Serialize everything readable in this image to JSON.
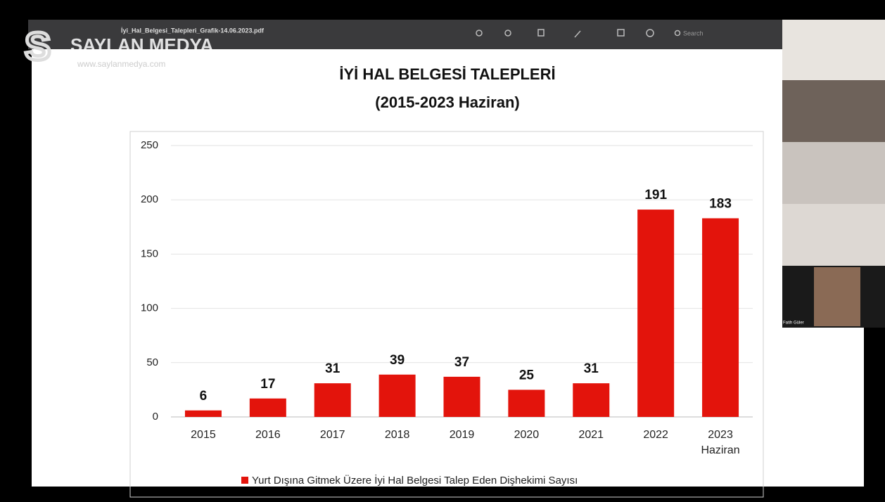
{
  "window": {
    "file_name": "İyi_Hal_Belgesi_Talepleri_Grafik-14.06.2023.pdf",
    "search": "Search",
    "watermark": "SAYLAN MEDYA",
    "watermark_url": "www.saylanmedya.com",
    "participants": [
      "Fatih Güler"
    ]
  },
  "chart_data": {
    "type": "bar",
    "title": "İYİ HAL BELGESİ TALEPLERİ",
    "subtitle": "(2015-2023 Haziran)",
    "categories": [
      "2015",
      "2016",
      "2017",
      "2018",
      "2019",
      "2020",
      "2021",
      "2022",
      "2023 Haziran"
    ],
    "series": [
      {
        "name": "Yurt Dışına Gitmek Üzere İyi Hal Belgesi Talep Eden Dişhekimi Sayısı",
        "color": "#e3140c",
        "values": [
          6,
          17,
          31,
          39,
          37,
          25,
          31,
          191,
          183
        ]
      }
    ],
    "ylim": [
      0,
      250
    ],
    "yticks": [
      0,
      50,
      100,
      150,
      200,
      250
    ],
    "grid": true,
    "legend": "bottom"
  }
}
